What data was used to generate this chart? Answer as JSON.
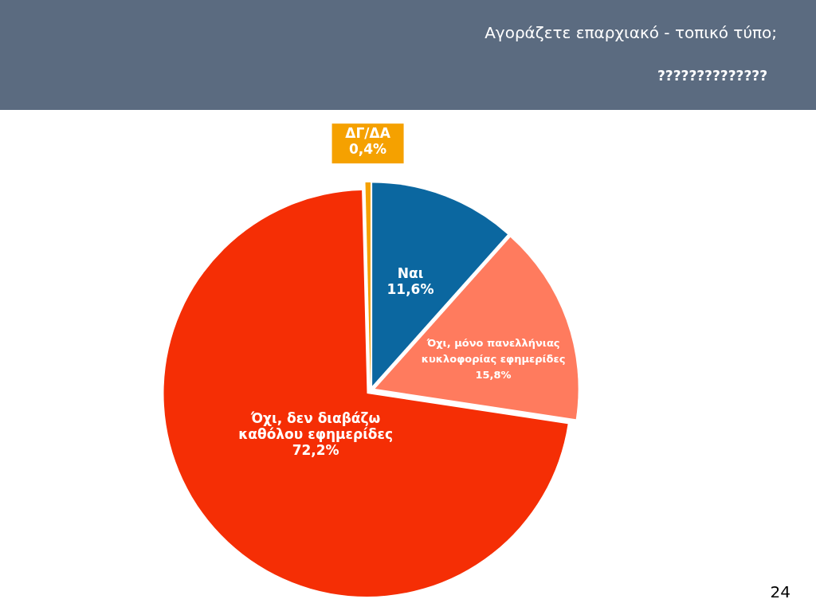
{
  "chart_data": {
    "type": "pie",
    "title": "Αγοράζετε επαρχιακό - τοπικό τύπο;",
    "subtitle": "??????????????",
    "categories": [
      "Ναι",
      "Όχι, μόνο πανελλήνιας κυκλοφορίας εφημερίδες",
      "Όχι, δεν διαβάζω καθόλου εφημερίδες",
      "ΔΓ/ΔΑ"
    ],
    "values": [
      11.6,
      15.8,
      72.2,
      0.4
    ],
    "colors": [
      "#0b67a0",
      "#ff7b5e",
      "#f52e05",
      "#f5a100"
    ],
    "value_labels": [
      "11,6%",
      "15,8%",
      "72,2%",
      "0,4%"
    ],
    "data_labels": true,
    "annotations": [
      "24"
    ]
  }
}
